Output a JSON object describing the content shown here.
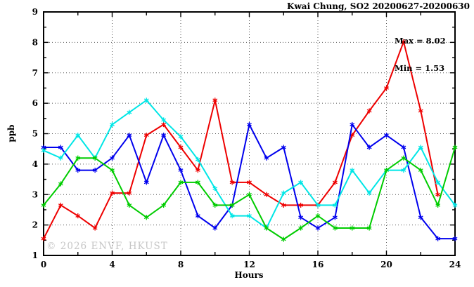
{
  "title": "Kwai Chung, SO2 20200627-20200630",
  "annotations": {
    "max_label": "Max = 8.02",
    "min_label": "Min = 1.53"
  },
  "watermark": "© 2026 ENVF, HKUST",
  "axes": {
    "y_label": "ppb",
    "x_label": "Hours"
  },
  "chart_data": {
    "type": "line",
    "title": "Kwai Chung, SO2 20200627-20200630",
    "xlabel": "Hours",
    "ylabel": "ppb",
    "xlim": [
      0,
      24
    ],
    "ylim": [
      1,
      9
    ],
    "x_major_ticks": [
      0,
      4,
      8,
      12,
      16,
      20,
      24
    ],
    "x_minor_step": 2,
    "y_major_ticks": [
      1,
      2,
      3,
      4,
      5,
      6,
      7,
      8,
      9
    ],
    "y_minor_step": 0.5,
    "grid": true,
    "legend_position": "none",
    "max": 8.02,
    "min": 1.53,
    "x": [
      0,
      1,
      2,
      3,
      4,
      5,
      6,
      7,
      8,
      9,
      10,
      11,
      12,
      13,
      14,
      15,
      16,
      17,
      18,
      19,
      20,
      21,
      22,
      23,
      24
    ],
    "series": [
      {
        "name": "red",
        "color": "#ee0000",
        "values": [
          1.55,
          2.65,
          2.3,
          1.9,
          3.05,
          3.05,
          4.95,
          5.3,
          4.55,
          3.8,
          6.1,
          3.4,
          3.4,
          3.0,
          2.65,
          2.65,
          2.65,
          3.4,
          4.95,
          5.75,
          6.5,
          8.02,
          5.75,
          3.0,
          null
        ]
      },
      {
        "name": "blue",
        "color": "#0000ee",
        "values": [
          4.55,
          4.55,
          3.8,
          3.8,
          4.2,
          4.95,
          3.4,
          4.95,
          3.8,
          2.3,
          1.9,
          2.65,
          5.3,
          4.2,
          4.55,
          2.25,
          1.9,
          2.25,
          5.3,
          4.55,
          4.95,
          4.55,
          2.25,
          1.55,
          1.55
        ]
      },
      {
        "name": "cyan",
        "color": "#00e6e6",
        "values": [
          4.45,
          4.2,
          4.95,
          4.2,
          5.3,
          5.7,
          6.1,
          5.45,
          4.9,
          4.15,
          3.2,
          2.3,
          2.3,
          1.9,
          3.05,
          3.4,
          2.65,
          2.65,
          3.8,
          3.05,
          3.8,
          3.8,
          4.55,
          3.4,
          2.65
        ]
      },
      {
        "name": "green",
        "color": "#00cc00",
        "values": [
          2.65,
          3.35,
          4.2,
          4.2,
          3.8,
          2.65,
          2.25,
          2.65,
          3.4,
          3.4,
          2.65,
          2.65,
          3.0,
          1.9,
          1.53,
          1.9,
          2.3,
          1.9,
          1.9,
          1.9,
          3.8,
          4.2,
          3.8,
          2.65,
          4.55
        ]
      }
    ],
    "plot_style": {
      "marker": "asterisk",
      "gridline_color": "#555555",
      "frame_color": "#000000",
      "background": "#ffffff"
    }
  }
}
